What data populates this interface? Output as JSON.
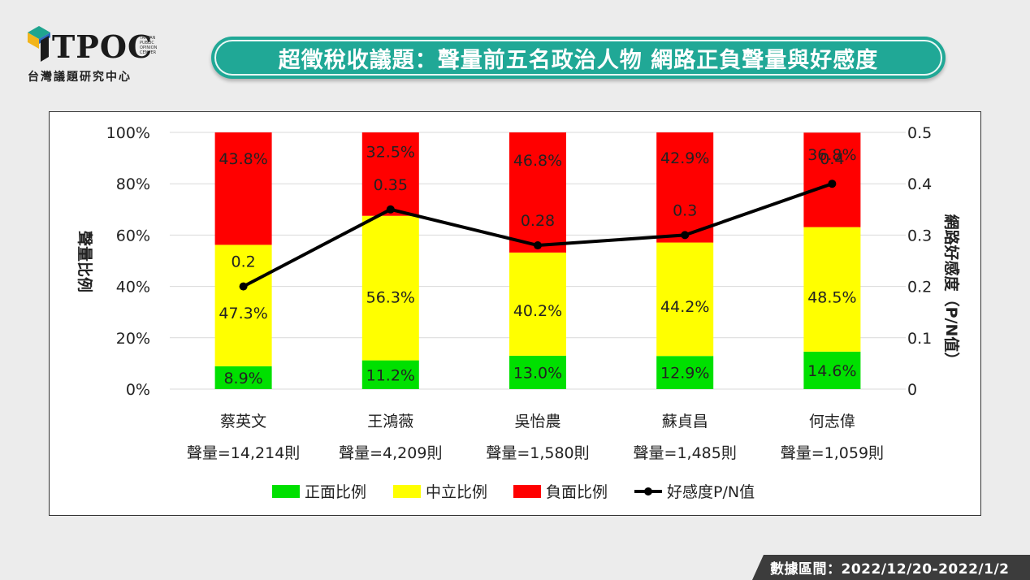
{
  "logo": {
    "brand": "TPOC",
    "subtitle": "台灣議題研究中心",
    "mini_text": "TAIWAN PUBLIC OPINION CENTER"
  },
  "header": {
    "title": "超徵稅收議題：聲量前五名政治人物  網路正負聲量與好感度"
  },
  "footer": {
    "date_range": "數據區間：2022/12/20-2022/1/2"
  },
  "colors": {
    "positive": "#00e000",
    "neutral": "#ffff00",
    "negative": "#ff0000",
    "line": "#000000",
    "banner": "#20a896"
  },
  "chart_data": {
    "type": "bar",
    "stacked": true,
    "categories": [
      "蔡英文",
      "王鴻薇",
      "吳怡農",
      "蘇貞昌",
      "何志偉"
    ],
    "volumes": [
      "聲量=14,214則",
      "聲量=4,209則",
      "聲量=1,580則",
      "聲量=1,485則",
      "聲量=1,059則"
    ],
    "series": [
      {
        "name": "正面比例",
        "values": [
          8.9,
          11.2,
          13.0,
          12.9,
          14.6
        ],
        "labels": [
          "8.9%",
          "11.2%",
          "13.0%",
          "12.9%",
          "14.6%"
        ],
        "color": "#00e000"
      },
      {
        "name": "中立比例",
        "values": [
          47.3,
          56.3,
          40.2,
          44.2,
          48.5
        ],
        "labels": [
          "47.3%",
          "56.3%",
          "40.2%",
          "44.2%",
          "48.5%"
        ],
        "color": "#ffff00"
      },
      {
        "name": "負面比例",
        "values": [
          43.8,
          32.5,
          46.8,
          42.9,
          36.8
        ],
        "labels": [
          "43.8%",
          "32.5%",
          "46.8%",
          "42.9%",
          "36.8%"
        ],
        "color": "#ff0000"
      }
    ],
    "line_series": {
      "name": "好感度P/N值",
      "values": [
        0.2,
        0.35,
        0.28,
        0.3,
        0.4
      ],
      "labels": [
        "0.2",
        "0.35",
        "0.28",
        "0.3",
        "0.4"
      ],
      "color": "#000000"
    },
    "ylabel": "聲量比例",
    "y2label": "網路好感度（P/N值）",
    "ylim": [
      0,
      100
    ],
    "y2lim": [
      0,
      0.5
    ],
    "yticks": [
      "0%",
      "20%",
      "40%",
      "60%",
      "80%",
      "100%"
    ],
    "y2ticks": [
      "0",
      "0.1",
      "0.2",
      "0.3",
      "0.4",
      "0.5"
    ],
    "legend_position": "bottom",
    "grid": true
  }
}
